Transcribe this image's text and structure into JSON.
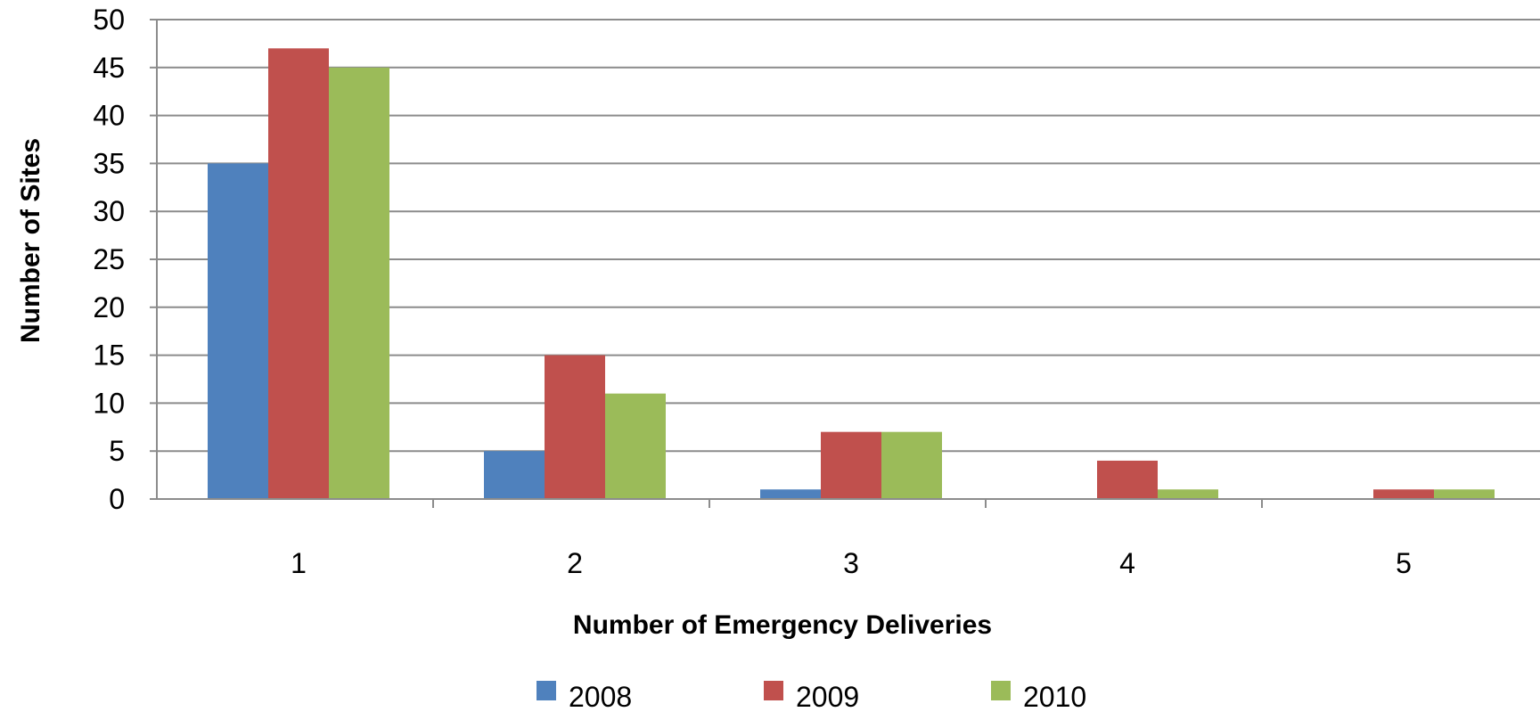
{
  "chart_data": {
    "type": "bar",
    "title": "",
    "xlabel": "Number of Emergency Deliveries",
    "ylabel": "Number of Sites",
    "categories": [
      "1",
      "2",
      "3",
      "4",
      "5"
    ],
    "series": [
      {
        "name": "2008",
        "color": "#4F81BD",
        "values": [
          35,
          5,
          1,
          0,
          0
        ]
      },
      {
        "name": "2009",
        "color": "#C0504D",
        "values": [
          47,
          15,
          7,
          4,
          1
        ]
      },
      {
        "name": "2010",
        "color": "#9BBB59",
        "values": [
          45,
          11,
          7,
          1,
          1
        ]
      }
    ],
    "ylim": [
      0,
      50
    ],
    "yticks": [
      "0",
      "5",
      "10",
      "15",
      "20",
      "25",
      "30",
      "35",
      "40",
      "45",
      "50"
    ],
    "grid": true,
    "legend_position": "bottom"
  }
}
